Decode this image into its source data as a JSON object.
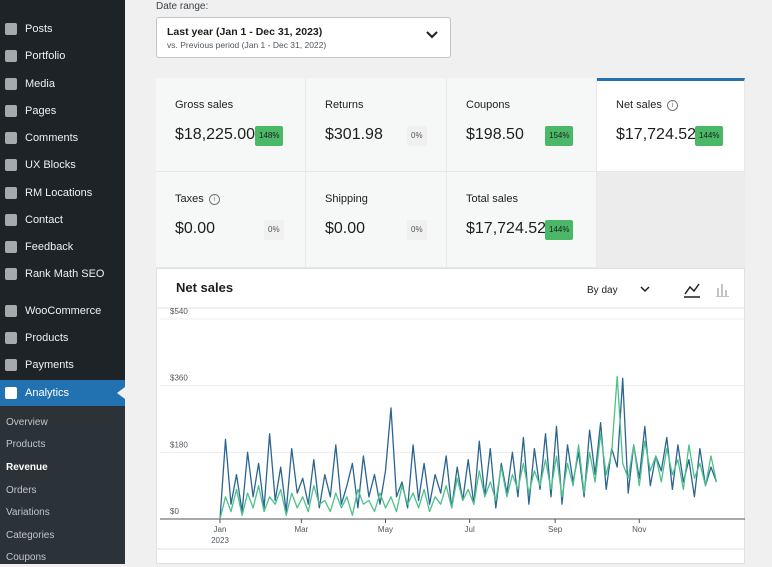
{
  "sidebar": {
    "menu": [
      "Posts",
      "Portfolio",
      "Media",
      "Pages",
      "Comments",
      "UX Blocks",
      "RM Locations",
      "Contact",
      "Feedback",
      "Rank Math SEO",
      "WooCommerce",
      "Products",
      "Payments",
      "Analytics"
    ],
    "submenu": [
      "Overview",
      "Products",
      "Revenue",
      "Orders",
      "Variations",
      "Categories",
      "Coupons"
    ]
  },
  "date_range": {
    "label": "Date range:",
    "current": "Last year (Jan 1 - Dec 31, 2023)",
    "compare": "vs. Previous period (Jan 1 - Dec 31, 2022)"
  },
  "stats": [
    {
      "label": "Gross sales",
      "value": "$18,225.00",
      "change": "148%"
    },
    {
      "label": "Returns",
      "value": "$301.98",
      "change": "0%"
    },
    {
      "label": "Coupons",
      "value": "$198.50",
      "change": "154%"
    },
    {
      "label": "Net sales",
      "value": "$17,724.52",
      "change": "144%"
    },
    {
      "label": "Taxes",
      "value": "$0.00",
      "change": "0%"
    },
    {
      "label": "Shipping",
      "value": "$0.00",
      "change": "0%"
    },
    {
      "label": "Total sales",
      "value": "$17,724.52",
      "change": "144%"
    }
  ],
  "chart_data": {
    "type": "line",
    "title": "Net sales",
    "interval": "By day",
    "x_year": "2023",
    "x": [
      1,
      5,
      9,
      13,
      17,
      21,
      25,
      29,
      33,
      37,
      41,
      45,
      49,
      53,
      57,
      61,
      65,
      69,
      73,
      77,
      81,
      85,
      89,
      93,
      97,
      101,
      105,
      109,
      113,
      117,
      121,
      125,
      129,
      133,
      137,
      141,
      145,
      149,
      153,
      157,
      161,
      165,
      169,
      173,
      177,
      181,
      185,
      189,
      193,
      197,
      201,
      205,
      209,
      213,
      217,
      221,
      225,
      229,
      233,
      237,
      241,
      245,
      249,
      253,
      257,
      261,
      265,
      269,
      273,
      277,
      281,
      285,
      289,
      293,
      297,
      301,
      305,
      309,
      313,
      317,
      321,
      325,
      329,
      333,
      337,
      341,
      345,
      349,
      353,
      357,
      361
    ],
    "xlim": [
      1,
      365
    ],
    "xticks": [
      {
        "value": 1,
        "label": "Jan"
      },
      {
        "value": 60,
        "label": "Mar"
      },
      {
        "value": 121,
        "label": "May"
      },
      {
        "value": 182,
        "label": "Jul"
      },
      {
        "value": 244,
        "label": "Sep"
      },
      {
        "value": 305,
        "label": "Nov"
      }
    ],
    "ylim": [
      0,
      540
    ],
    "yticks": [
      {
        "value": 0,
        "label": "$0"
      },
      {
        "value": 180,
        "label": "$180"
      },
      {
        "value": 360,
        "label": "$360"
      },
      {
        "value": 540,
        "label": "$540"
      }
    ],
    "grid": true,
    "series": [
      {
        "color": "#2a6591",
        "values": [
          0,
          215,
          40,
          120,
          20,
          180,
          60,
          150,
          30,
          230,
          50,
          140,
          20,
          190,
          70,
          110,
          40,
          160,
          30,
          120,
          60,
          200,
          40,
          90,
          150,
          30,
          170,
          60,
          120,
          40,
          130,
          300,
          60,
          100,
          30,
          200,
          50,
          150,
          40,
          120,
          70,
          170,
          30,
          140,
          50,
          160,
          40,
          210,
          60,
          190,
          30,
          150,
          70,
          180,
          60,
          220,
          40,
          190,
          80,
          230,
          60,
          250,
          40,
          200,
          100,
          180,
          60,
          240,
          120,
          260,
          80,
          190,
          140,
          380,
          70,
          200,
          110,
          250,
          90,
          170,
          130,
          220,
          80,
          200,
          100,
          160,
          60,
          190,
          90,
          140,
          100
        ]
      },
      {
        "color": "#4ec18a",
        "values": [
          0,
          60,
          20,
          80,
          10,
          70,
          30,
          90,
          20,
          60,
          40,
          80,
          10,
          70,
          30,
          60,
          20,
          90,
          40,
          50,
          20,
          70,
          30,
          60,
          10,
          80,
          40,
          50,
          20,
          70,
          30,
          60,
          20,
          90,
          40,
          70,
          30,
          80,
          20,
          60,
          40,
          90,
          30,
          110,
          50,
          80,
          40,
          130,
          60,
          100,
          50,
          140,
          60,
          120,
          80,
          150,
          70,
          130,
          90,
          160,
          80,
          170,
          60,
          150,
          90,
          200,
          70,
          180,
          100,
          230,
          120,
          180,
          385,
          150,
          110,
          200,
          90,
          210,
          130,
          170,
          100,
          190,
          120,
          160,
          80,
          200,
          110,
          150,
          90,
          170,
          100
        ]
      }
    ]
  }
}
